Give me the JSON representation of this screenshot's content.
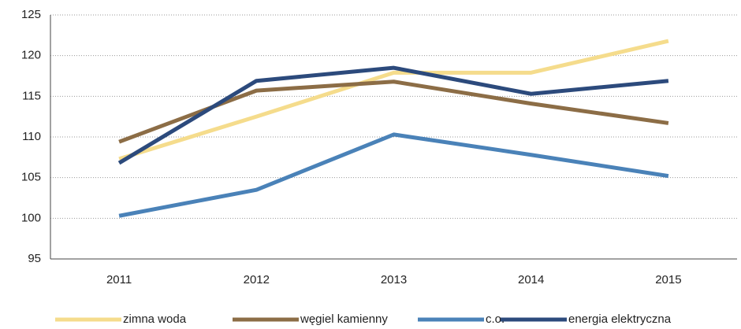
{
  "chart_data": {
    "type": "line",
    "x": [
      "2011",
      "2012",
      "2013",
      "2014",
      "2015"
    ],
    "series": [
      {
        "name": "zimna woda",
        "color": "#f5dc8c",
        "values": [
          107.3,
          112.5,
          117.9,
          117.9,
          121.8
        ]
      },
      {
        "name": "węgiel kamienny",
        "color": "#8c6d46",
        "values": [
          109.4,
          115.7,
          116.8,
          114.1,
          111.7
        ]
      },
      {
        "name": "c.o.",
        "color": "#4a82b8",
        "values": [
          100.3,
          103.5,
          110.3,
          107.8,
          105.2
        ]
      },
      {
        "name": "energia elektryczna",
        "color": "#2c4a7c",
        "values": [
          106.8,
          116.9,
          118.5,
          115.3,
          116.9
        ]
      }
    ],
    "ylim": [
      95,
      125
    ],
    "yticks": [
      95,
      100,
      105,
      110,
      115,
      120,
      125
    ],
    "grid": true,
    "legend": "bottom"
  }
}
